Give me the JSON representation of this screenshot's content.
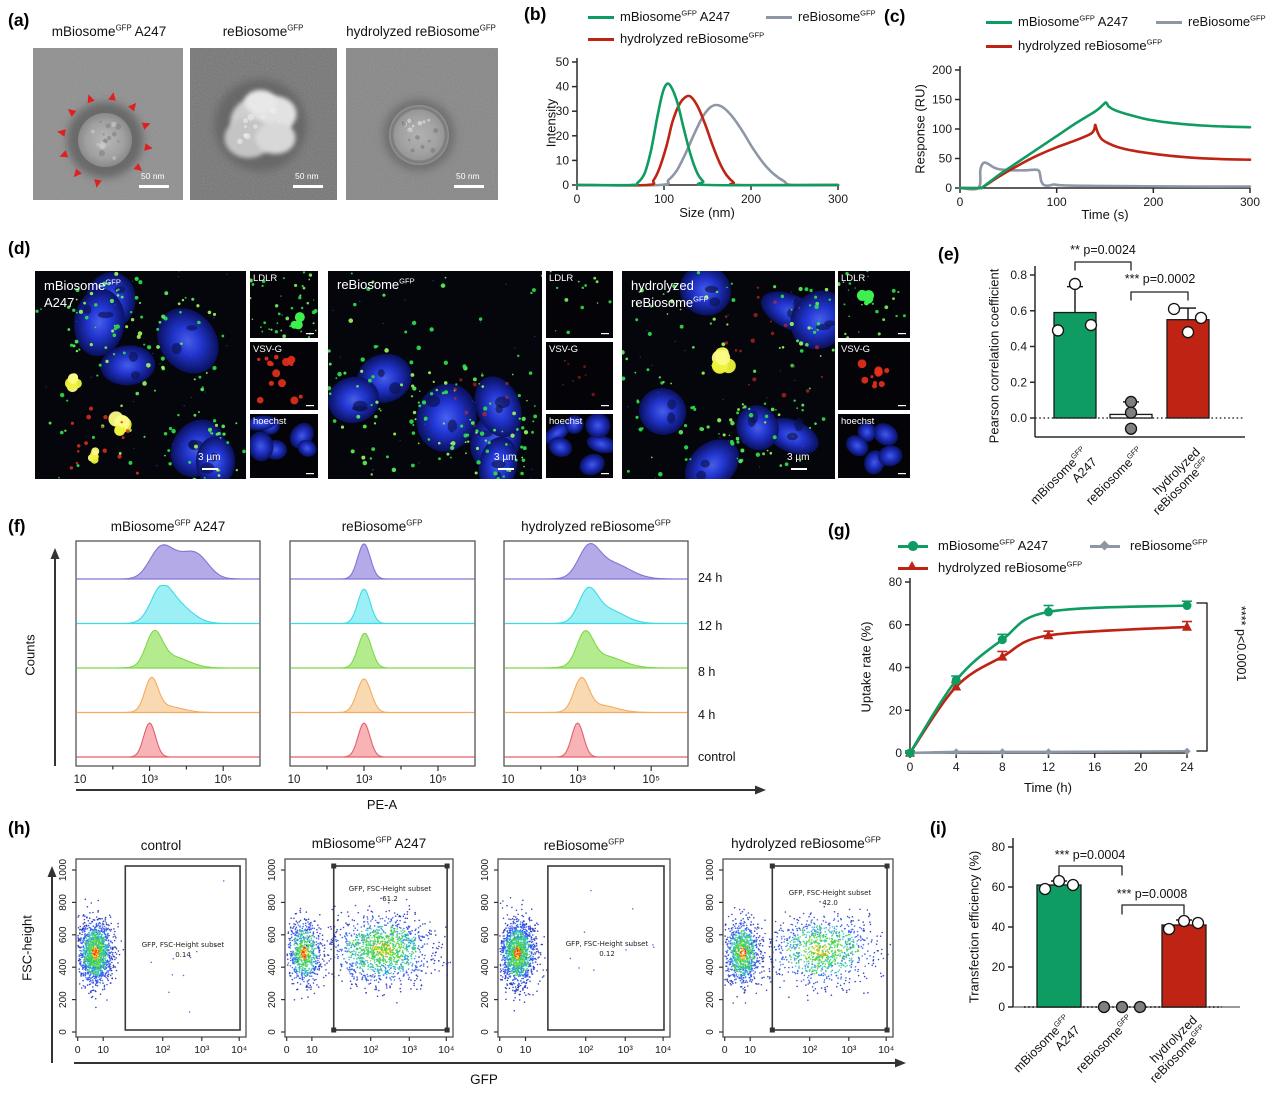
{
  "colors": {
    "green": "#0e9c62",
    "red": "#bf2314",
    "gray": "#8d97a6",
    "axis": "#2a2a2a",
    "white": "#ffffff",
    "point_gray": "#7f7f7f"
  },
  "groups": {
    "m": {
      "pre": "mBiosome",
      "sup": "GFP",
      "post": " A247"
    },
    "m1": {
      "pre": "mBiosome",
      "sup": "GFP"
    },
    "m2": "A247",
    "re": {
      "pre": "reBiosome",
      "sup": "GFP",
      "post": ""
    },
    "hy": {
      "pre": "hydrolyzed reBiosome",
      "sup": "GFP",
      "post": ""
    },
    "hy1": "hydrolyzed",
    "hy2": {
      "pre": "reBiosome",
      "sup": "GFP"
    },
    "control": "control"
  },
  "panel_a": {
    "label": "(a)",
    "scale_bar": "50 nm"
  },
  "panel_b": {
    "label": "(b)"
  },
  "panel_c": {
    "label": "(c)"
  },
  "panel_d": {
    "label": "(d)",
    "insets": [
      "LDLR",
      "VSV-G",
      "hoechst"
    ],
    "scale_bar": "3 µm"
  },
  "panel_e": {
    "label": "(e)"
  },
  "panel_f": {
    "label": "(f)"
  },
  "panel_g": {
    "label": "(g)"
  },
  "panel_h": {
    "label": "(h)"
  },
  "panel_i": {
    "label": "(i)"
  },
  "chart_data": [
    {
      "id": "b",
      "type": "line",
      "xlabel": "Size (nm)",
      "ylabel": "Intensity",
      "xlim": [
        0,
        300
      ],
      "ylim": [
        0,
        50
      ],
      "xticks": [
        0,
        100,
        200,
        300
      ],
      "yticks": [
        0,
        10,
        20,
        30,
        40,
        50
      ],
      "series": [
        {
          "name": "reBiosome^GFP",
          "color": "gray",
          "peak_nm": 158,
          "points": [
            [
              0,
              0
            ],
            [
              95,
              0
            ],
            [
              105,
              2
            ],
            [
              115,
              6
            ],
            [
              125,
              13
            ],
            [
              135,
              21
            ],
            [
              145,
              28
            ],
            [
              153,
              31.5
            ],
            [
              160,
              32.5
            ],
            [
              168,
              31.5
            ],
            [
              178,
              28
            ],
            [
              190,
              22
            ],
            [
              202,
              15
            ],
            [
              214,
              9
            ],
            [
              226,
              4.5
            ],
            [
              238,
              1.5
            ],
            [
              248,
              0
            ],
            [
              300,
              0
            ]
          ]
        },
        {
          "name": "hydrolyzed reBiosome^GFP",
          "color": "red",
          "peak_nm": 128,
          "points": [
            [
              0,
              0
            ],
            [
              80,
              0
            ],
            [
              88,
              2
            ],
            [
              95,
              7
            ],
            [
              103,
              16
            ],
            [
              110,
              26
            ],
            [
              118,
              33
            ],
            [
              126,
              36
            ],
            [
              132,
              35.5
            ],
            [
              140,
              31
            ],
            [
              148,
              24
            ],
            [
              156,
              16
            ],
            [
              164,
              9
            ],
            [
              172,
              4
            ],
            [
              180,
              1
            ],
            [
              186,
              0
            ],
            [
              300,
              0
            ]
          ]
        },
        {
          "name": "mBiosome^GFP A247",
          "color": "green",
          "peak_nm": 103,
          "points": [
            [
              0,
              0
            ],
            [
              62,
              0
            ],
            [
              70,
              1
            ],
            [
              78,
              5
            ],
            [
              85,
              14
            ],
            [
              92,
              27
            ],
            [
              98,
              37
            ],
            [
              103,
              41
            ],
            [
              108,
              40
            ],
            [
              115,
              34
            ],
            [
              122,
              24
            ],
            [
              130,
              13
            ],
            [
              138,
              5
            ],
            [
              145,
              1.5
            ],
            [
              152,
              0
            ],
            [
              300,
              0
            ]
          ]
        }
      ]
    },
    {
      "id": "c",
      "type": "line",
      "xlabel": "Time (s)",
      "ylabel": "Response (RU)",
      "xlim": [
        0,
        300
      ],
      "ylim": [
        0,
        200
      ],
      "xticks": [
        0,
        100,
        200,
        300
      ],
      "yticks": [
        0,
        50,
        100,
        150,
        200
      ],
      "series": [
        {
          "name": "reBiosome^GFP",
          "color": "gray",
          "points": [
            [
              0,
              0
            ],
            [
              19,
              0
            ],
            [
              21,
              30
            ],
            [
              23,
              40
            ],
            [
              26,
              43
            ],
            [
              30,
              40
            ],
            [
              36,
              34
            ],
            [
              44,
              31
            ],
            [
              55,
              30
            ],
            [
              68,
              30
            ],
            [
              78,
              31
            ],
            [
              82,
              28
            ],
            [
              84,
              12
            ],
            [
              87,
              5
            ],
            [
              92,
              4
            ],
            [
              97,
              6
            ],
            [
              102,
              5
            ],
            [
              115,
              4
            ],
            [
              140,
              3.5
            ],
            [
              180,
              3
            ],
            [
              240,
              2.5
            ],
            [
              300,
              2.5
            ]
          ]
        },
        {
          "name": "hydrolyzed reBiosome^GFP",
          "color": "red",
          "points": [
            [
              0,
              0
            ],
            [
              20,
              0
            ],
            [
              25,
              3
            ],
            [
              40,
              19
            ],
            [
              60,
              38
            ],
            [
              80,
              55
            ],
            [
              100,
              69
            ],
            [
              120,
              81
            ],
            [
              133,
              90
            ],
            [
              137,
              94
            ],
            [
              139,
              100
            ],
            [
              140,
              107
            ],
            [
              142,
              96
            ],
            [
              146,
              84
            ],
            [
              152,
              77
            ],
            [
              162,
              70
            ],
            [
              180,
              63
            ],
            [
              205,
              57
            ],
            [
              235,
              52
            ],
            [
              270,
              49
            ],
            [
              300,
              48
            ]
          ]
        },
        {
          "name": "mBiosome^GFP A247",
          "color": "green",
          "points": [
            [
              0,
              0
            ],
            [
              20,
              0
            ],
            [
              24,
              2
            ],
            [
              40,
              22
            ],
            [
              60,
              44
            ],
            [
              80,
              66
            ],
            [
              100,
              88
            ],
            [
              120,
              110
            ],
            [
              140,
              130
            ],
            [
              148,
              141
            ],
            [
              151,
              145
            ],
            [
              154,
              138
            ],
            [
              160,
              132
            ],
            [
              175,
              124
            ],
            [
              195,
              116
            ],
            [
              220,
              110
            ],
            [
              250,
              106
            ],
            [
              275,
              104
            ],
            [
              300,
              103
            ]
          ]
        }
      ]
    },
    {
      "id": "e",
      "type": "bar",
      "ylabel": "Pearson correlation coefficient",
      "ylim": [
        -0.12,
        0.8
      ],
      "ytick_labels": [
        "0.0",
        "0.2",
        "0.4",
        "0.6",
        "0.8"
      ],
      "categories": [
        "mBiosome^GFP A247",
        "reBiosome^GFP",
        "hydrolyzed reBiosome^GFP"
      ],
      "values": [
        0.59,
        0.02,
        0.55
      ],
      "errors": [
        0.145,
        0.07,
        0.065
      ],
      "bar_colors": [
        "green",
        "white",
        "red"
      ],
      "points": [
        [
          0.49,
          0.75,
          0.52
        ],
        [
          0.09,
          0.03,
          -0.06
        ],
        [
          0.61,
          0.48,
          0.56
        ]
      ],
      "sig": [
        {
          "stars": "**",
          "text": "p=0.0024"
        },
        {
          "stars": "***",
          "text": "p=0.0002"
        }
      ]
    },
    {
      "id": "f",
      "type": "histogram-stack",
      "xlabel": "PE-A",
      "ylabel": "Counts",
      "row_labels": [
        "24 h",
        "12 h",
        "8 h",
        "4 h",
        "control"
      ],
      "xtick_labels": [
        "10",
        "10³",
        "10⁵"
      ],
      "row_styles": [
        {
          "fill": "#aea3e6",
          "stroke": "#8375d4"
        },
        {
          "fill": "#93eef4",
          "stroke": "#3fd9e4"
        },
        {
          "fill": "#aee986",
          "stroke": "#7cd84a"
        },
        {
          "fill": "#f9d6ab",
          "stroke": "#f3ac62"
        },
        {
          "fill": "#f7adb0",
          "stroke": "#e45f6b"
        }
      ],
      "panels": [
        {
          "title": "mBiosome^GFP A247",
          "rows": [
            [
              [
                3.28,
                0.3,
                0.62
              ],
              [
                3.9,
                0.45,
                0.52
              ],
              [
                4.35,
                0.3,
                0.3
              ]
            ],
            [
              [
                3.3,
                0.28,
                0.72
              ],
              [
                3.75,
                0.4,
                0.45
              ]
            ],
            [
              [
                3.12,
                0.22,
                0.78
              ],
              [
                3.6,
                0.45,
                0.28
              ]
            ],
            [
              [
                3.05,
                0.18,
                0.8
              ],
              [
                3.5,
                0.4,
                0.15
              ]
            ],
            [
              [
                3.0,
                0.16,
                0.85
              ]
            ]
          ]
        },
        {
          "title": "reBiosome^GFP",
          "rows": [
            [
              [
                3.0,
                0.17,
                0.88
              ]
            ],
            [
              [
                3.0,
                0.17,
                0.86
              ]
            ],
            [
              [
                3.02,
                0.18,
                0.87
              ]
            ],
            [
              [
                3.0,
                0.19,
                0.84
              ]
            ],
            [
              [
                3.0,
                0.16,
                0.85
              ]
            ]
          ]
        },
        {
          "title": "hydrolyzed reBiosome^GFP",
          "rows": [
            [
              [
                3.3,
                0.28,
                0.68
              ],
              [
                3.9,
                0.5,
                0.4
              ]
            ],
            [
              [
                3.28,
                0.25,
                0.72
              ],
              [
                3.8,
                0.45,
                0.35
              ]
            ],
            [
              [
                3.2,
                0.22,
                0.75
              ],
              [
                3.7,
                0.5,
                0.3
              ]
            ],
            [
              [
                3.1,
                0.2,
                0.78
              ],
              [
                3.6,
                0.45,
                0.18
              ]
            ],
            [
              [
                3.0,
                0.16,
                0.85
              ]
            ]
          ]
        }
      ]
    },
    {
      "id": "g",
      "type": "line",
      "xlabel": "Time (h)",
      "ylabel": "Uptake rate (%)",
      "xlim": [
        0,
        24
      ],
      "ylim": [
        0,
        80
      ],
      "xticks": [
        0,
        4,
        8,
        12,
        16,
        20,
        24
      ],
      "yticks": [
        0,
        20,
        40,
        60,
        80
      ],
      "x": [
        0,
        4,
        8,
        12,
        24
      ],
      "series": [
        {
          "name": "reBiosome^GFP",
          "color": "gray",
          "marker": "diamond",
          "y": [
            0,
            0.5,
            0.5,
            0.5,
            0.8
          ],
          "err": [
            0,
            0,
            0,
            0,
            0
          ]
        },
        {
          "name": "hydrolyzed reBiosome^GFP",
          "color": "red",
          "marker": "triangle",
          "y": [
            0,
            31,
            45,
            55,
            59
          ],
          "err": [
            1,
            2,
            2.5,
            2,
            2.5
          ]
        },
        {
          "name": "mBiosome^GFP A247",
          "color": "green",
          "marker": "circle",
          "y": [
            0,
            34,
            53,
            66,
            69
          ],
          "err": [
            1,
            2,
            2.5,
            3,
            2
          ]
        }
      ],
      "sig": {
        "stars": "****",
        "text": "p<0.0001"
      }
    },
    {
      "id": "h",
      "type": "scatter-flow",
      "xlabel": "GFP",
      "ylabel": "FSC-height",
      "xtick_labels": [
        "0",
        "10",
        "10²",
        "10³",
        "10⁴"
      ],
      "ytick_values": [
        0,
        200,
        400,
        600,
        800,
        1000
      ],
      "gate_text": "GFP, FSC-Height subset",
      "panels": [
        {
          "title": "control",
          "value": "0.14",
          "gated_positive": false
        },
        {
          "title": "mBiosome^GFP A247",
          "value": "61.2",
          "gated_positive": true
        },
        {
          "title": "reBiosome^GFP",
          "value": "0.12",
          "gated_positive": false
        },
        {
          "title": "hydrolyzed reBiosome^GFP",
          "value": "42.0",
          "gated_positive": true
        }
      ]
    },
    {
      "id": "i",
      "type": "bar",
      "ylabel": "Transfection efficiency (%)",
      "ylim": [
        0,
        80
      ],
      "ytick_labels": [
        "0",
        "20",
        "40",
        "60",
        "80"
      ],
      "categories": [
        "mBiosome^GFP A247",
        "reBiosome^GFP",
        "hydrolyzed reBiosome^GFP"
      ],
      "values": [
        61,
        0,
        41
      ],
      "errors": [
        2,
        0,
        2.5
      ],
      "bar_colors": [
        "green",
        "gray",
        "red"
      ],
      "points": [
        [
          59,
          63,
          61
        ],
        [
          0,
          0,
          0
        ],
        [
          39,
          43,
          42
        ]
      ],
      "sig": [
        {
          "stars": "***",
          "text": "p=0.0004"
        },
        {
          "stars": "***",
          "text": "p=0.0008"
        }
      ]
    }
  ]
}
